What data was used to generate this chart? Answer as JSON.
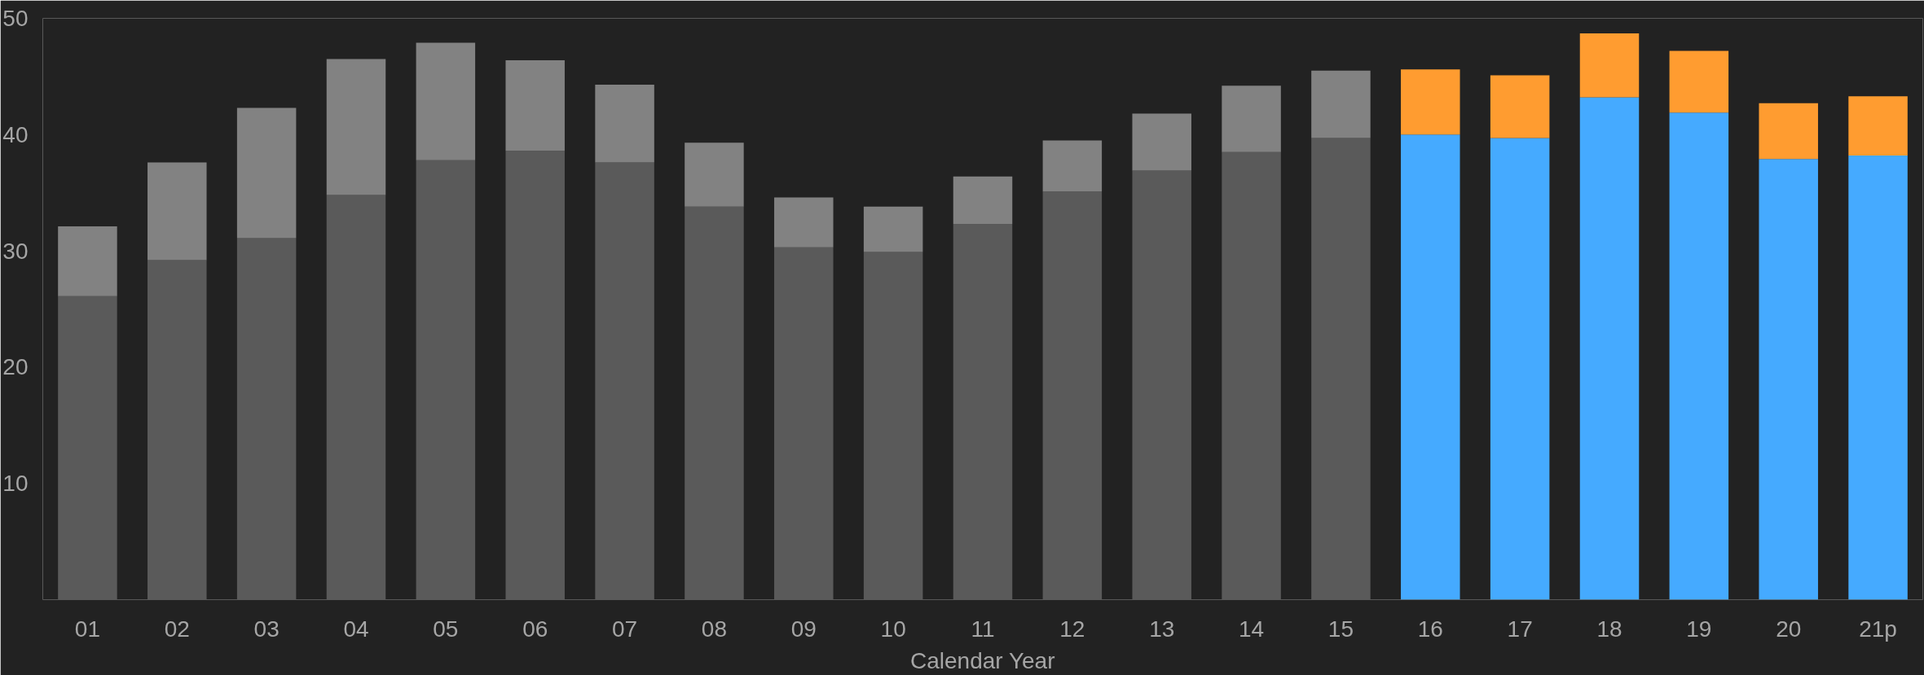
{
  "chart_data": {
    "type": "bar",
    "stacked": true,
    "xlabel": "Calendar Year",
    "categories": [
      "01",
      "02",
      "03",
      "04",
      "05",
      "06",
      "07",
      "08",
      "09",
      "10",
      "11",
      "12",
      "13",
      "14",
      "15",
      "16",
      "17",
      "18",
      "19",
      "20",
      "21p"
    ],
    "series": [
      {
        "color": "#5a5a5a",
        "values": [
          26.1,
          29.2,
          31.1,
          34.8,
          37.8,
          38.6,
          37.6,
          33.8,
          30.3,
          29.9,
          32.3,
          35.1,
          36.9,
          38.5,
          39.7,
          null,
          null,
          null,
          null,
          null,
          null
        ]
      },
      {
        "color": "#828282",
        "values": [
          6.0,
          8.4,
          11.2,
          11.7,
          10.1,
          7.8,
          6.7,
          5.5,
          4.3,
          3.9,
          4.1,
          4.4,
          4.9,
          5.7,
          5.8,
          null,
          null,
          null,
          null,
          null,
          null
        ]
      },
      {
        "color": "#45aaff",
        "values": [
          null,
          null,
          null,
          null,
          null,
          null,
          null,
          null,
          null,
          null,
          null,
          null,
          null,
          null,
          null,
          40.0,
          39.7,
          43.2,
          41.9,
          37.9,
          38.2
        ]
      },
      {
        "color": "#ff9c30",
        "values": [
          null,
          null,
          null,
          null,
          null,
          null,
          null,
          null,
          null,
          null,
          null,
          null,
          null,
          null,
          null,
          5.6,
          5.4,
          5.5,
          5.3,
          4.8,
          5.1
        ]
      }
    ],
    "ylim": [
      0,
      50
    ],
    "yticks": [
      10,
      20,
      30,
      40,
      50
    ],
    "grid": false
  }
}
